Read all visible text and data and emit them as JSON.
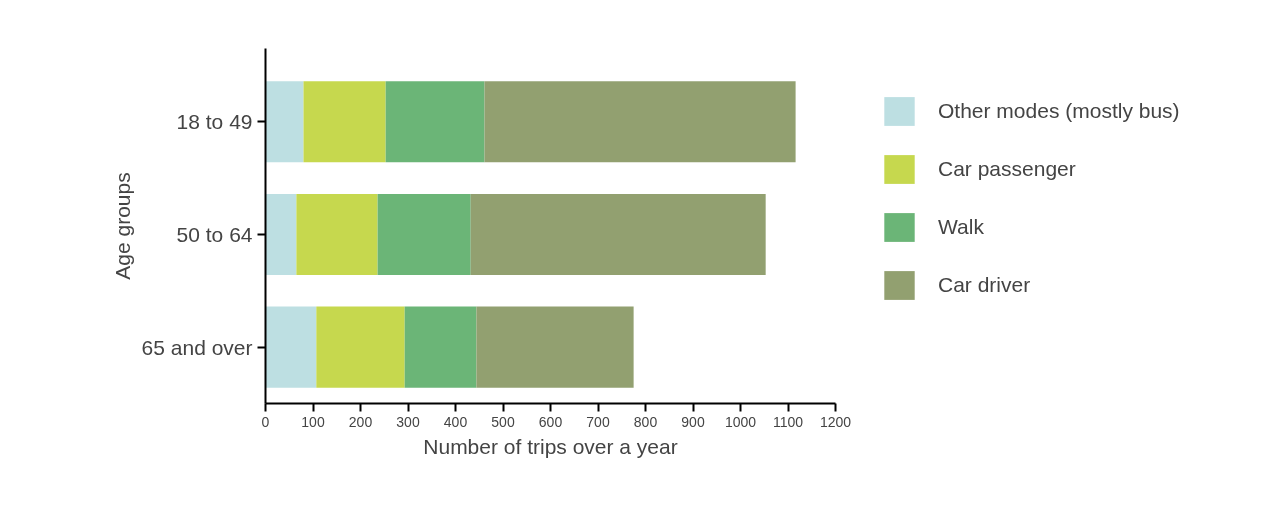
{
  "chart_data": {
    "type": "bar",
    "orientation": "horizontal",
    "stacked": true,
    "xlabel": "Number of trips over a year",
    "ylabel": "Age groups",
    "categories": [
      "18 to 49",
      "50 to 64",
      "65 and over"
    ],
    "series": [
      {
        "name": "Other modes (mostly bus)",
        "color": "#bddfe2",
        "values": [
          80,
          65,
          107
        ]
      },
      {
        "name": "Car passenger",
        "color": "#c6d84e",
        "values": [
          173,
          171,
          186
        ]
      },
      {
        "name": "Walk",
        "color": "#6bb577",
        "values": [
          208,
          196,
          151
        ]
      },
      {
        "name": "Car driver",
        "color": "#92a070",
        "values": [
          655,
          621,
          331
        ]
      }
    ],
    "xlim": [
      0,
      1200
    ],
    "xticks": [
      0,
      100,
      200,
      300,
      400,
      500,
      600,
      700,
      800,
      900,
      1000,
      1100,
      1200
    ],
    "grid": false,
    "legend": "top right"
  }
}
